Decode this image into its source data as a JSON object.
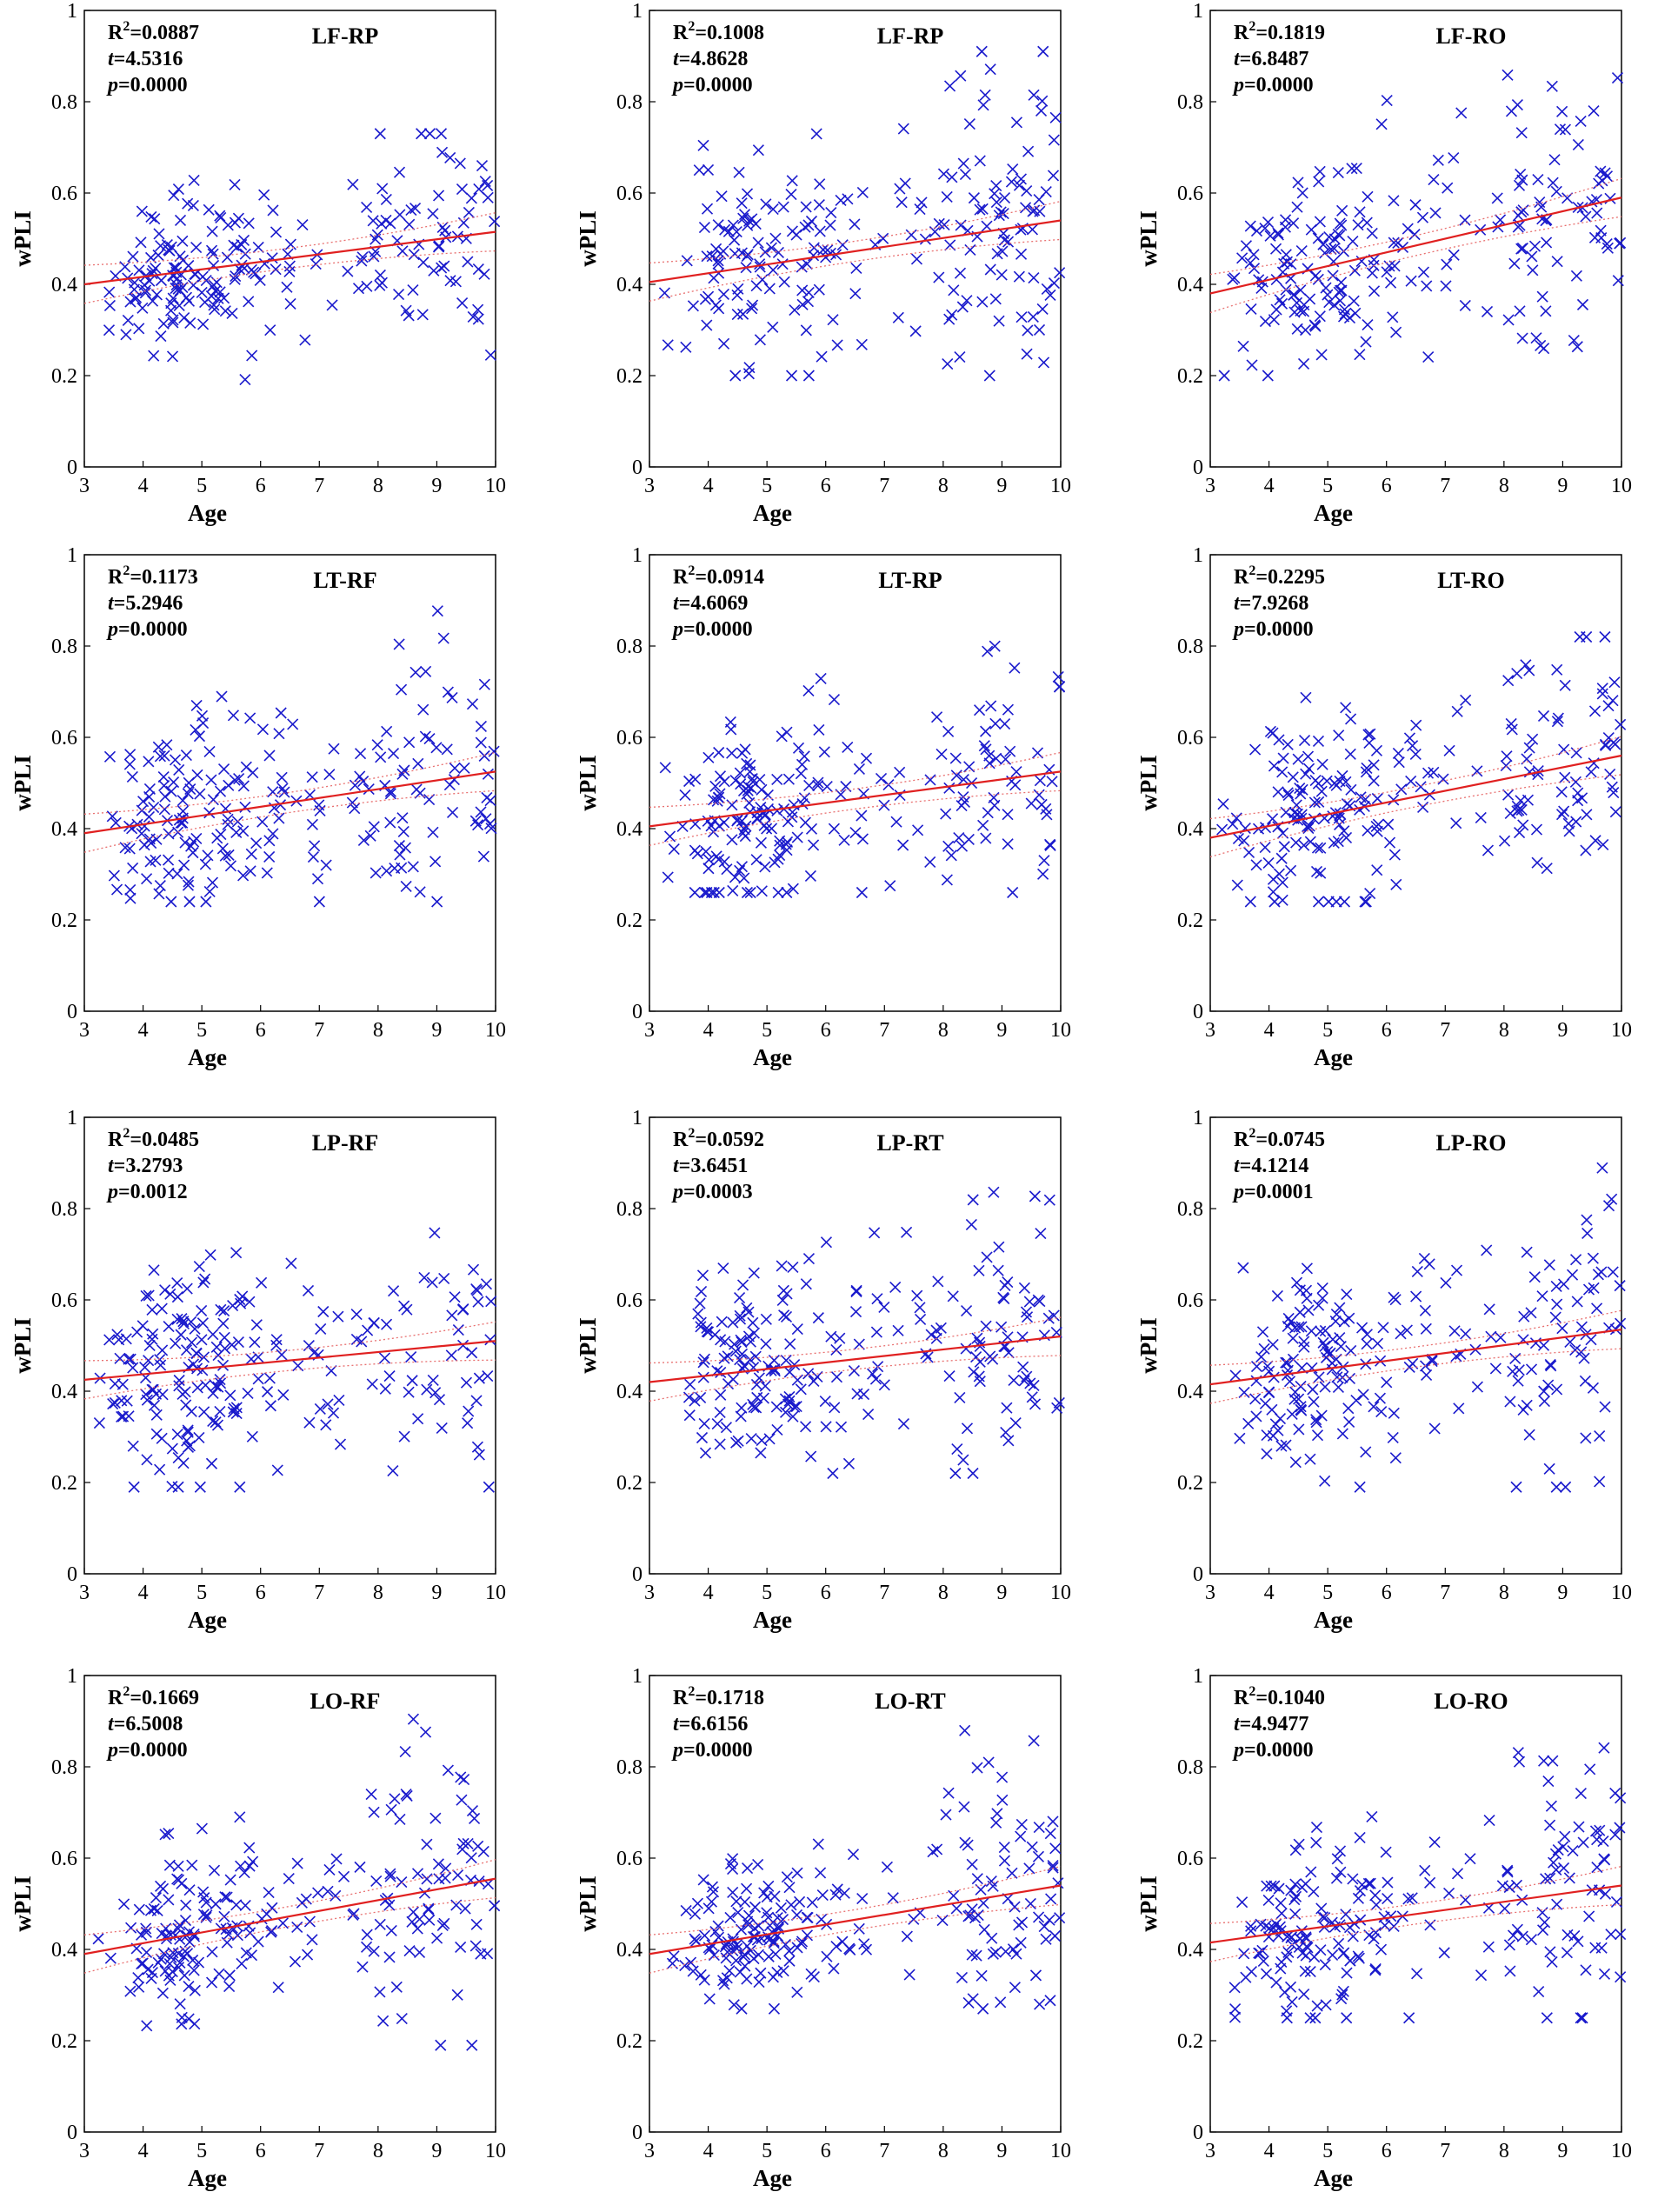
{
  "figure": {
    "xlabel": "Age",
    "ylabel": "wPLI",
    "stat_labels": {
      "r2": "R",
      "r2_sup": "2",
      "t": "t",
      "p": "p"
    }
  },
  "colors": {
    "marker": "#1a1acc",
    "fit": "#e02020",
    "ci": "#e87070",
    "axis": "#000000"
  },
  "chart_data": [
    {
      "type": "scatter",
      "title": "LF-RP",
      "r2": "0.0887",
      "t": "4.5316",
      "p": "0.0000",
      "fit": [
        0.4,
        0.515
      ],
      "xlim": [
        3,
        10
      ],
      "ylim": [
        0,
        1
      ],
      "xticks": [
        3,
        4,
        5,
        6,
        7,
        8,
        9,
        10
      ],
      "yticks": [
        0,
        0.2,
        0.4,
        0.6,
        0.8,
        1
      ],
      "xlabel": "Age",
      "ylabel": "wPLI",
      "seed": 11,
      "spread": 0.08,
      "hi": 0.73,
      "lo": 0.15
    },
    {
      "type": "scatter",
      "title": "LF-RP",
      "r2": "0.1008",
      "t": "4.8628",
      "p": "0.0000",
      "fit": [
        0.405,
        0.54
      ],
      "xlim": [
        3,
        10
      ],
      "ylim": [
        0,
        1
      ],
      "xticks": [
        3,
        4,
        5,
        6,
        7,
        8,
        9,
        10
      ],
      "yticks": [
        0,
        0.2,
        0.4,
        0.6,
        0.8,
        1
      ],
      "xlabel": "Age",
      "ylabel": "wPLI",
      "seed": 23,
      "spread": 0.11,
      "hi": 0.91,
      "lo": 0.2
    },
    {
      "type": "scatter",
      "title": "LF-RO",
      "r2": "0.1819",
      "t": "6.8487",
      "p": "0.0000",
      "fit": [
        0.38,
        0.59
      ],
      "xlim": [
        3,
        10
      ],
      "ylim": [
        0,
        1
      ],
      "xticks": [
        3,
        4,
        5,
        6,
        7,
        8,
        9,
        10
      ],
      "yticks": [
        0,
        0.2,
        0.4,
        0.6,
        0.8,
        1
      ],
      "xlabel": "Age",
      "ylabel": "wPLI",
      "seed": 37,
      "spread": 0.11,
      "hi": 0.96,
      "lo": 0.2
    },
    {
      "type": "scatter",
      "title": "LT-RF",
      "r2": "0.1173",
      "t": "5.2946",
      "p": "0.0000",
      "fit": [
        0.39,
        0.525
      ],
      "xlim": [
        3,
        10
      ],
      "ylim": [
        0,
        1
      ],
      "xticks": [
        3,
        4,
        5,
        6,
        7,
        8,
        9,
        10
      ],
      "yticks": [
        0,
        0.2,
        0.4,
        0.6,
        0.8,
        1
      ],
      "xlabel": "Age",
      "ylabel": "wPLI",
      "seed": 41,
      "spread": 0.1,
      "hi": 0.92,
      "lo": 0.24
    },
    {
      "type": "scatter",
      "title": "LT-RP",
      "r2": "0.0914",
      "t": "4.6069",
      "p": "0.0000",
      "fit": [
        0.405,
        0.525
      ],
      "xlim": [
        3,
        10
      ],
      "ylim": [
        0,
        1
      ],
      "xticks": [
        3,
        4,
        5,
        6,
        7,
        8,
        9,
        10
      ],
      "yticks": [
        0,
        0.2,
        0.4,
        0.6,
        0.8,
        1
      ],
      "xlabel": "Age",
      "ylabel": "wPLI",
      "seed": 53,
      "spread": 0.1,
      "hi": 0.93,
      "lo": 0.26
    },
    {
      "type": "scatter",
      "title": "LT-RO",
      "r2": "0.2295",
      "t": "7.9268",
      "p": "0.0000",
      "fit": [
        0.38,
        0.56
      ],
      "xlim": [
        3,
        10
      ],
      "ylim": [
        0,
        1
      ],
      "xticks": [
        3,
        4,
        5,
        6,
        7,
        8,
        9,
        10
      ],
      "yticks": [
        0,
        0.2,
        0.4,
        0.6,
        0.8,
        1
      ],
      "xlabel": "Age",
      "ylabel": "wPLI",
      "seed": 67,
      "spread": 0.1,
      "hi": 0.82,
      "lo": 0.24
    },
    {
      "type": "scatter",
      "title": "LP-RF",
      "r2": "0.0485",
      "t": "3.2793",
      "p": "0.0012",
      "fit": [
        0.425,
        0.51
      ],
      "xlim": [
        3,
        10
      ],
      "ylim": [
        0,
        1
      ],
      "xticks": [
        3,
        4,
        5,
        6,
        7,
        8,
        9,
        10
      ],
      "yticks": [
        0,
        0.2,
        0.4,
        0.6,
        0.8,
        1
      ],
      "xlabel": "Age",
      "ylabel": "wPLI",
      "seed": 71,
      "spread": 0.11,
      "hi": 0.94,
      "lo": 0.19
    },
    {
      "type": "scatter",
      "title": "LP-RT",
      "r2": "0.0592",
      "t": "3.6451",
      "p": "0.0003",
      "fit": [
        0.42,
        0.52
      ],
      "xlim": [
        3,
        10
      ],
      "ylim": [
        0,
        1
      ],
      "xticks": [
        3,
        4,
        5,
        6,
        7,
        8,
        9,
        10
      ],
      "yticks": [
        0,
        0.2,
        0.4,
        0.6,
        0.8,
        1
      ],
      "xlabel": "Age",
      "ylabel": "wPLI",
      "seed": 83,
      "spread": 0.11,
      "hi": 0.92,
      "lo": 0.22
    },
    {
      "type": "scatter",
      "title": "LP-RO",
      "r2": "0.0745",
      "t": "4.1214",
      "p": "0.0001",
      "fit": [
        0.415,
        0.535
      ],
      "xlim": [
        3,
        10
      ],
      "ylim": [
        0,
        1
      ],
      "xticks": [
        3,
        4,
        5,
        6,
        7,
        8,
        9,
        10
      ],
      "yticks": [
        0,
        0.2,
        0.4,
        0.6,
        0.8,
        1
      ],
      "xlabel": "Age",
      "ylabel": "wPLI",
      "seed": 97,
      "spread": 0.11,
      "hi": 0.92,
      "lo": 0.19
    },
    {
      "type": "scatter",
      "title": "LO-RF",
      "r2": "0.1669",
      "t": "6.5008",
      "p": "0.0000",
      "fit": [
        0.39,
        0.555
      ],
      "xlim": [
        3,
        10
      ],
      "ylim": [
        0,
        1
      ],
      "xticks": [
        3,
        4,
        5,
        6,
        7,
        8,
        9,
        10
      ],
      "yticks": [
        0,
        0.2,
        0.4,
        0.6,
        0.8,
        1
      ],
      "xlabel": "Age",
      "ylabel": "wPLI",
      "seed": 103,
      "spread": 0.1,
      "hi": 0.94,
      "lo": 0.19
    },
    {
      "type": "scatter",
      "title": "LO-RT",
      "r2": "0.1718",
      "t": "6.6156",
      "p": "0.0000",
      "fit": [
        0.39,
        0.54
      ],
      "xlim": [
        3,
        10
      ],
      "ylim": [
        0,
        1
      ],
      "xticks": [
        3,
        4,
        5,
        6,
        7,
        8,
        9,
        10
      ],
      "yticks": [
        0,
        0.2,
        0.4,
        0.6,
        0.8,
        1
      ],
      "xlabel": "Age",
      "ylabel": "wPLI",
      "seed": 113,
      "spread": 0.09,
      "hi": 0.91,
      "lo": 0.27
    },
    {
      "type": "scatter",
      "title": "LO-RO",
      "r2": "0.1040",
      "t": "4.9477",
      "p": "0.0000",
      "fit": [
        0.415,
        0.54
      ],
      "xlim": [
        3,
        10
      ],
      "ylim": [
        0,
        1
      ],
      "xticks": [
        3,
        4,
        5,
        6,
        7,
        8,
        9,
        10
      ],
      "yticks": [
        0,
        0.2,
        0.4,
        0.6,
        0.8,
        1
      ],
      "xlabel": "Age",
      "ylabel": "wPLI",
      "seed": 127,
      "spread": 0.1,
      "hi": 0.88,
      "lo": 0.25
    }
  ]
}
